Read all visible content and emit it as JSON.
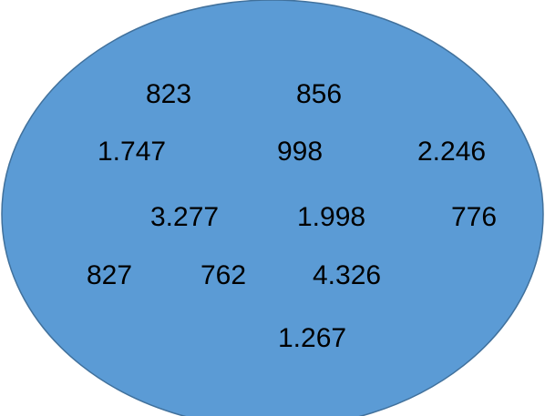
{
  "diagram": {
    "fill_color": "#5b9bd5",
    "stroke_color": "#41719c",
    "numbers": [
      {
        "text": "823"
      },
      {
        "text": "856"
      },
      {
        "text": "1.747"
      },
      {
        "text": "998"
      },
      {
        "text": "2.246"
      },
      {
        "text": "3.277"
      },
      {
        "text": "1.998"
      },
      {
        "text": "776"
      },
      {
        "text": "827"
      },
      {
        "text": "762"
      },
      {
        "text": "4.326"
      },
      {
        "text": "1.267"
      }
    ]
  }
}
